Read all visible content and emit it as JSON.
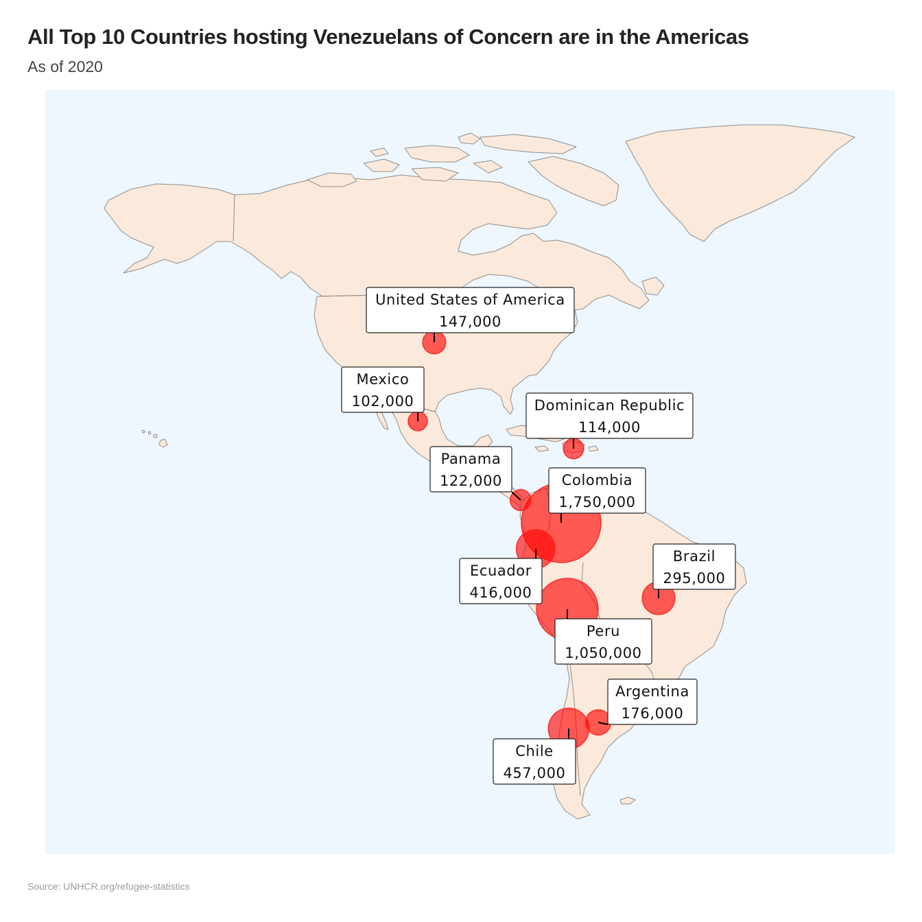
{
  "title": "All Top 10 Countries hosting Venezuelans of Concern are in the Americas",
  "subtitle": "As of 2020",
  "source": "Source: UNHCR.org/refugee-statistics",
  "colors": {
    "ocean": "#eef6fe",
    "land": "#fbeadb",
    "bubble": "#ff0000",
    "border": "#8d8d8d"
  },
  "chart_data": {
    "type": "bubble-map",
    "region": "Americas",
    "points": [
      {
        "country": "United States of America",
        "value": 147000,
        "label": "147,000"
      },
      {
        "country": "Mexico",
        "value": 102000,
        "label": "102,000"
      },
      {
        "country": "Dominican Republic",
        "value": 114000,
        "label": "114,000"
      },
      {
        "country": "Panama",
        "value": 122000,
        "label": "122,000"
      },
      {
        "country": "Colombia",
        "value": 1750000,
        "label": "1,750,000"
      },
      {
        "country": "Ecuador",
        "value": 416000,
        "label": "416,000"
      },
      {
        "country": "Brazil",
        "value": 295000,
        "label": "295,000"
      },
      {
        "country": "Peru",
        "value": 1050000,
        "label": "1,050,000"
      },
      {
        "country": "Argentina",
        "value": 176000,
        "label": "176,000"
      },
      {
        "country": "Chile",
        "value": 457000,
        "label": "457,000"
      }
    ]
  }
}
